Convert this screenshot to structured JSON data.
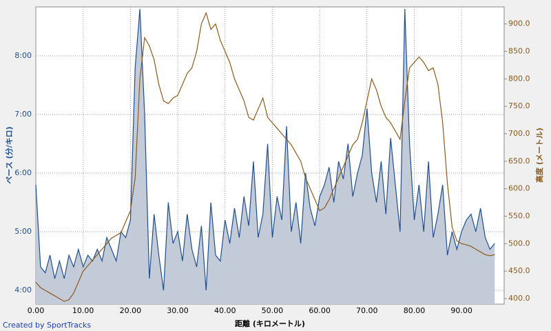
{
  "chart_data": {
    "type": "line",
    "xlabel": "距離 (キロメートル)",
    "ylabel": "ペース (分/キロ)",
    "y2label": "高度 (メートル)",
    "credit": "Created by SportTracks",
    "x": [
      0,
      1,
      2,
      3,
      4,
      5,
      6,
      7,
      8,
      9,
      10,
      11,
      12,
      13,
      14,
      15,
      16,
      17,
      18,
      19,
      20,
      21,
      22,
      23,
      24,
      25,
      26,
      27,
      28,
      29,
      30,
      31,
      32,
      33,
      34,
      35,
      36,
      37,
      38,
      39,
      40,
      41,
      42,
      43,
      44,
      45,
      46,
      47,
      48,
      49,
      50,
      51,
      52,
      53,
      54,
      55,
      56,
      57,
      58,
      59,
      60,
      61,
      62,
      63,
      64,
      65,
      66,
      67,
      68,
      69,
      70,
      71,
      72,
      73,
      74,
      75,
      76,
      77,
      78,
      79,
      80,
      81,
      82,
      83,
      84,
      85,
      86,
      87,
      88,
      89,
      90,
      91,
      92,
      93,
      94,
      95,
      96,
      97
    ],
    "xlim": [
      0,
      99
    ],
    "xticks": [
      {
        "value": 0,
        "label": "0.00"
      },
      {
        "value": 10,
        "label": "10.00"
      },
      {
        "value": 20,
        "label": "20.00"
      },
      {
        "value": 30,
        "label": "30.00"
      },
      {
        "value": 40,
        "label": "40.00"
      },
      {
        "value": 50,
        "label": "50.00"
      },
      {
        "value": 60,
        "label": "60.00"
      },
      {
        "value": 70,
        "label": "70.00"
      },
      {
        "value": 80,
        "label": "80.00"
      },
      {
        "value": 90,
        "label": "90.00"
      }
    ],
    "ylim": [
      3.765,
      8.835
    ],
    "yticks": [
      {
        "value": 4,
        "label": "4:00"
      },
      {
        "value": 5,
        "label": "5:00"
      },
      {
        "value": 6,
        "label": "6:00"
      },
      {
        "value": 7,
        "label": "7:00"
      },
      {
        "value": 8,
        "label": "8:00"
      }
    ],
    "y2lim": [
      390,
      931
    ],
    "y2ticks": [
      {
        "value": 400,
        "label": "400.0"
      },
      {
        "value": 450,
        "label": "450.0"
      },
      {
        "value": 500,
        "label": "500.0"
      },
      {
        "value": 550,
        "label": "550.0"
      },
      {
        "value": 600,
        "label": "600.0"
      },
      {
        "value": 650,
        "label": "650.0"
      },
      {
        "value": 700,
        "label": "700.0"
      },
      {
        "value": 750,
        "label": "750.0"
      },
      {
        "value": 800,
        "label": "800.0"
      },
      {
        "value": 850,
        "label": "850.0"
      },
      {
        "value": 900,
        "label": "900.0"
      }
    ],
    "grid": true,
    "series": [
      {
        "name": "ペース",
        "color": "#1f4e8c",
        "fill": "#c3cad8",
        "values": [
          5.8,
          4.4,
          4.3,
          4.6,
          4.2,
          4.5,
          4.2,
          4.6,
          4.4,
          4.7,
          4.4,
          4.6,
          4.5,
          4.7,
          4.5,
          4.9,
          4.7,
          4.5,
          5.0,
          4.9,
          5.2,
          7.8,
          8.8,
          7.0,
          4.2,
          5.3,
          4.6,
          4.0,
          5.5,
          4.8,
          5.0,
          4.5,
          5.3,
          4.7,
          4.4,
          5.1,
          4.0,
          5.5,
          4.6,
          4.5,
          5.2,
          4.8,
          5.4,
          4.9,
          5.6,
          5.1,
          6.2,
          4.9,
          5.3,
          6.5,
          4.9,
          5.6,
          5.2,
          6.8,
          5.0,
          5.5,
          4.8,
          6.0,
          5.4,
          5.1,
          5.6,
          5.8,
          6.1,
          5.5,
          6.2,
          5.9,
          6.5,
          5.6,
          6.0,
          6.3,
          7.1,
          6.0,
          5.5,
          6.2,
          5.3,
          6.6,
          5.8,
          5.0,
          8.8,
          6.5,
          5.2,
          5.8,
          5.0,
          6.2,
          4.9,
          5.3,
          5.8,
          4.6,
          5.0,
          4.7,
          5.0,
          5.2,
          5.3,
          5.0,
          5.4,
          4.9,
          4.7,
          4.8
        ]
      },
      {
        "name": "高度",
        "color": "#8b5a1a",
        "axis": "y2",
        "values": [
          430,
          420,
          415,
          410,
          405,
          400,
          395,
          398,
          410,
          430,
          450,
          460,
          470,
          480,
          490,
          500,
          510,
          515,
          520,
          540,
          560,
          620,
          800,
          875,
          860,
          835,
          790,
          760,
          755,
          765,
          770,
          790,
          810,
          820,
          850,
          900,
          920,
          890,
          900,
          870,
          850,
          830,
          800,
          780,
          760,
          730,
          725,
          745,
          765,
          730,
          720,
          710,
          700,
          690,
          680,
          665,
          650,
          620,
          600,
          580,
          560,
          565,
          580,
          600,
          620,
          640,
          660,
          680,
          690,
          720,
          760,
          800,
          780,
          750,
          730,
          720,
          705,
          690,
          760,
          820,
          830,
          840,
          830,
          815,
          820,
          790,
          720,
          610,
          530,
          505,
          500,
          498,
          495,
          490,
          485,
          480,
          478,
          480
        ]
      }
    ]
  }
}
